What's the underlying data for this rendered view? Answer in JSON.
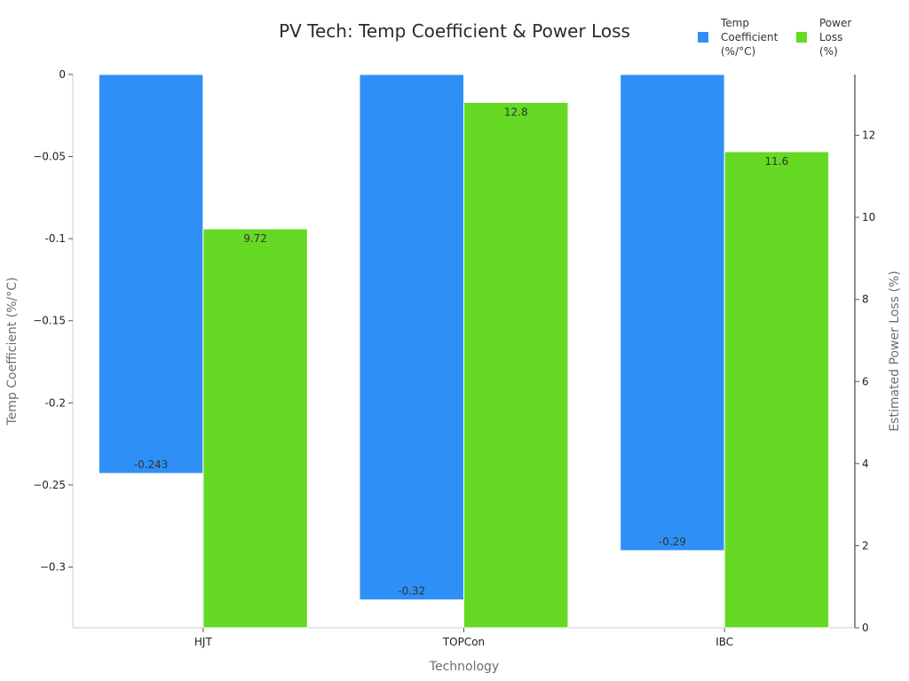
{
  "chart_data": {
    "type": "bar",
    "title": "PV Tech: Temp Coefficient & Power Loss",
    "xlabel": "Technology",
    "ylabel_left": "Temp Coefficient (%/°C)",
    "ylabel_right": "Estimated Power Loss (%)",
    "categories": [
      "HJT",
      "TOPCon",
      "IBC"
    ],
    "series": [
      {
        "name": "Temp Coefficient (%/°C)",
        "legend_lines": [
          "Temp",
          "Coefficient",
          "(%/°C)"
        ],
        "axis": "left",
        "color": "#2e90f7",
        "values": [
          -0.243,
          -0.32,
          -0.29
        ],
        "labels": [
          "-0.243",
          "-0.32",
          "-0.29"
        ]
      },
      {
        "name": "Power Loss (%)",
        "legend_lines": [
          "Power",
          "Loss",
          "(%)"
        ],
        "axis": "right",
        "color": "#66d924",
        "values": [
          9.72,
          12.8,
          11.6
        ],
        "labels": [
          "9.72",
          "12.8",
          "11.6"
        ]
      }
    ],
    "left_axis": {
      "ylim": [
        -0.337,
        0
      ],
      "ticks": [
        0,
        -0.05,
        -0.1,
        -0.15,
        -0.2,
        -0.25,
        -0.3
      ],
      "tick_labels": [
        "0",
        "−0.05",
        "-0.1",
        "−0.15",
        "-0.2",
        "−0.25",
        "−0.3"
      ]
    },
    "right_axis": {
      "ylim": [
        0,
        13.48
      ],
      "ticks": [
        0,
        2,
        4,
        6,
        8,
        10,
        12
      ],
      "tick_labels": [
        "0",
        "2",
        "4",
        "6",
        "8",
        "10",
        "12"
      ]
    },
    "grid": false,
    "legend_position": "top-right"
  }
}
